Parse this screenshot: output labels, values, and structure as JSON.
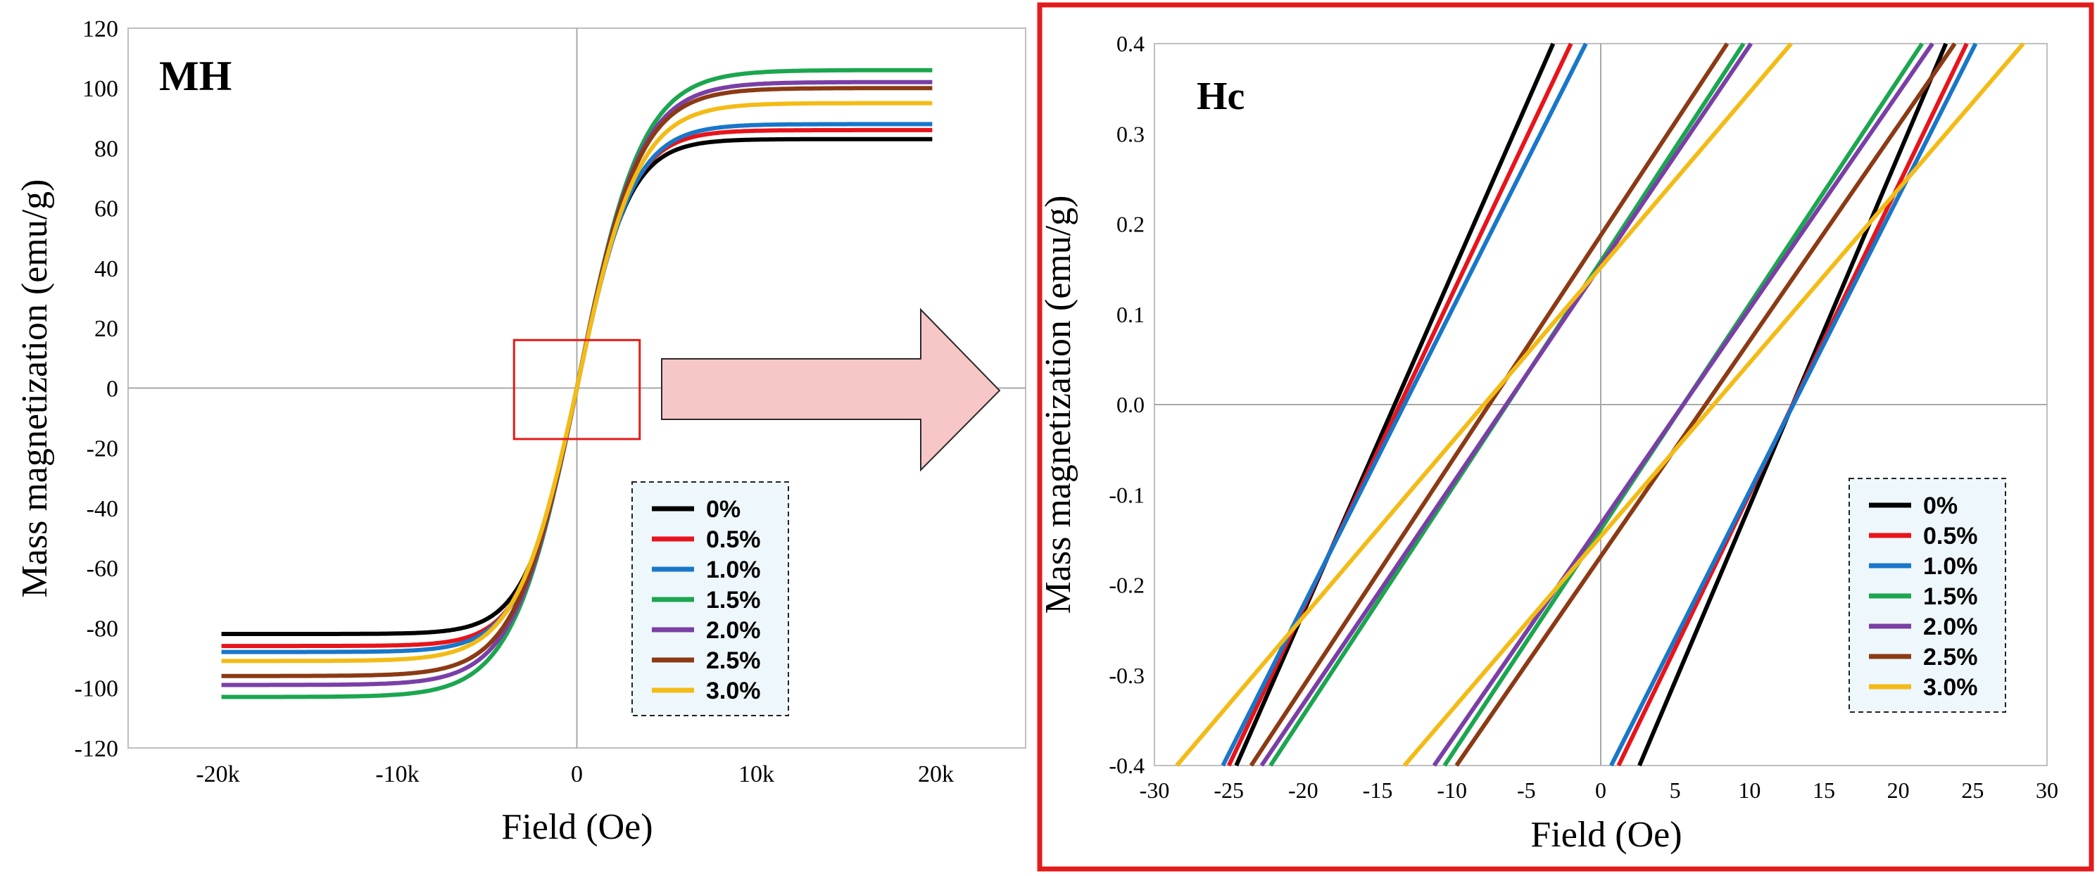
{
  "colors": {
    "0%": "#000000",
    "0.5%": "#e8141b",
    "1.0%": "#1877c9",
    "1.5%": "#1ba64f",
    "2.0%": "#7a3fa6",
    "2.5%": "#8b3a14",
    "3.0%": "#f3bb16",
    "frame_red": "#e41b1b",
    "arrow_fill": "#f7c6c7",
    "legend_bg": "#eef7fb"
  },
  "arrow_label": "",
  "chart_data": [
    {
      "id": "mh",
      "type": "line",
      "title": "MH",
      "xlabel": "Field (Oe)",
      "ylabel": "Mass magnetization (emu/g)",
      "xlim": [
        -25000,
        25000
      ],
      "ylim": [
        -120,
        120
      ],
      "xticks": [
        {
          "value": -20000,
          "label": "-20k"
        },
        {
          "value": -10000,
          "label": "-10k"
        },
        {
          "value": 0,
          "label": "0"
        },
        {
          "value": 10000,
          "label": "10k"
        },
        {
          "value": 20000,
          "label": "20k"
        }
      ],
      "yticks": [
        {
          "value": -120,
          "label": "-120"
        },
        {
          "value": -100,
          "label": "-100"
        },
        {
          "value": -80,
          "label": "-80"
        },
        {
          "value": -60,
          "label": "-60"
        },
        {
          "value": -40,
          "label": "-40"
        },
        {
          "value": -20,
          "label": "-20"
        },
        {
          "value": 0,
          "label": "0"
        },
        {
          "value": 20,
          "label": "20"
        },
        {
          "value": 40,
          "label": "40"
        },
        {
          "value": 60,
          "label": "60"
        },
        {
          "value": 80,
          "label": "80"
        },
        {
          "value": 100,
          "label": "100"
        },
        {
          "value": 120,
          "label": "120"
        }
      ],
      "zoom_box": {
        "x": [
          -3500,
          3500
        ],
        "y": [
          -17,
          16
        ]
      },
      "legend": {
        "position": "lower-right",
        "entries": [
          "0%",
          "0.5%",
          "1.0%",
          "1.5%",
          "2.0%",
          "2.5%",
          "3.0%"
        ]
      },
      "series": [
        {
          "name": "0%",
          "Ms": 84,
          "hs": 2900,
          "pos_end": 83,
          "neg_end": -82
        },
        {
          "name": "0.5%",
          "Ms": 87,
          "hs": 3000,
          "pos_end": 86,
          "neg_end": -86
        },
        {
          "name": "1.0%",
          "Ms": 90,
          "hs": 3150,
          "pos_end": 88,
          "neg_end": -88
        },
        {
          "name": "1.5%",
          "Ms": 108,
          "hs": 3600,
          "pos_end": 106,
          "neg_end": -103
        },
        {
          "name": "2.0%",
          "Ms": 103,
          "hs": 3500,
          "pos_end": 102,
          "neg_end": -99
        },
        {
          "name": "2.5%",
          "Ms": 101,
          "hs": 3450,
          "pos_end": 100,
          "neg_end": -96
        },
        {
          "name": "3.0%",
          "Ms": 96,
          "hs": 3400,
          "pos_end": 95,
          "neg_end": -91
        }
      ]
    },
    {
      "id": "hc",
      "type": "line",
      "title": "Hc",
      "xlabel": "Field (Oe)",
      "ylabel": "Mass magnetization (emu/g)",
      "xlim": [
        -30,
        30
      ],
      "ylim": [
        -0.4,
        0.4
      ],
      "xticks": [
        {
          "value": -30,
          "label": "-30"
        },
        {
          "value": -25,
          "label": "-25"
        },
        {
          "value": -20,
          "label": "-20"
        },
        {
          "value": -15,
          "label": "-15"
        },
        {
          "value": -10,
          "label": "-10"
        },
        {
          "value": -5,
          "label": "-5"
        },
        {
          "value": 0,
          "label": "0"
        },
        {
          "value": 5,
          "label": "5"
        },
        {
          "value": 10,
          "label": "10"
        },
        {
          "value": 15,
          "label": "15"
        },
        {
          "value": 20,
          "label": "20"
        },
        {
          "value": 25,
          "label": "25"
        },
        {
          "value": 30,
          "label": "30"
        }
      ],
      "yticks": [
        {
          "value": -0.4,
          "label": "-0.4"
        },
        {
          "value": -0.3,
          "label": "-0.3"
        },
        {
          "value": -0.2,
          "label": "-0.2"
        },
        {
          "value": -0.1,
          "label": "-0.1"
        },
        {
          "value": 0.0,
          "label": "0.0"
        },
        {
          "value": 0.1,
          "label": "0.1"
        },
        {
          "value": 0.2,
          "label": "0.2"
        },
        {
          "value": 0.3,
          "label": "0.3"
        },
        {
          "value": 0.4,
          "label": "0.4"
        }
      ],
      "legend": {
        "position": "lower-right",
        "entries": [
          "0%",
          "0.5%",
          "1.0%",
          "1.5%",
          "2.0%",
          "2.5%",
          "3.0%"
        ]
      },
      "series": [
        {
          "name": "0%",
          "descending": [
            [
              -24.5,
              -0.4
            ],
            [
              -3.2,
              0.4
            ]
          ],
          "ascending": [
            [
              2.6,
              -0.4
            ],
            [
              23.2,
              0.4
            ]
          ]
        },
        {
          "name": "0.5%",
          "descending": [
            [
              -25.0,
              -0.4
            ],
            [
              -2.0,
              0.4
            ]
          ],
          "ascending": [
            [
              1.2,
              -0.4
            ],
            [
              24.6,
              0.4
            ]
          ]
        },
        {
          "name": "1.0%",
          "descending": [
            [
              -25.4,
              -0.4
            ],
            [
              -1.0,
              0.4
            ]
          ],
          "ascending": [
            [
              0.7,
              -0.4
            ],
            [
              25.2,
              0.4
            ]
          ]
        },
        {
          "name": "1.5%",
          "descending": [
            [
              -22.2,
              -0.4
            ],
            [
              9.6,
              0.4
            ]
          ],
          "ascending": [
            [
              -10.5,
              -0.4
            ],
            [
              21.6,
              0.4
            ]
          ]
        },
        {
          "name": "2.0%",
          "descending": [
            [
              -22.8,
              -0.4
            ],
            [
              10.1,
              0.4
            ]
          ],
          "ascending": [
            [
              -11.2,
              -0.4
            ],
            [
              22.3,
              0.4
            ]
          ]
        },
        {
          "name": "2.5%",
          "descending": [
            [
              -23.5,
              -0.4
            ],
            [
              8.5,
              0.4
            ]
          ],
          "ascending": [
            [
              -9.7,
              -0.4
            ],
            [
              23.8,
              0.4
            ]
          ]
        },
        {
          "name": "3.0%",
          "descending": [
            [
              -28.5,
              -0.4
            ],
            [
              12.8,
              0.4
            ]
          ],
          "ascending": [
            [
              -13.2,
              -0.4
            ],
            [
              28.4,
              0.4
            ]
          ]
        }
      ]
    }
  ]
}
